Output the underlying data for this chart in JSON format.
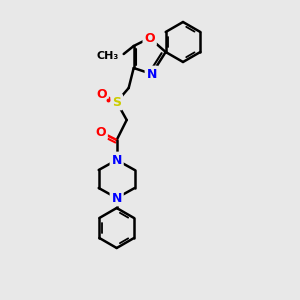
{
  "bg_color": "#e8e8e8",
  "bond_color": "#000000",
  "atom_colors": {
    "O": "#ff0000",
    "N": "#0000ff",
    "S": "#cccc00",
    "C": "#000000"
  },
  "figsize": [
    3.0,
    3.0
  ],
  "dpi": 100
}
